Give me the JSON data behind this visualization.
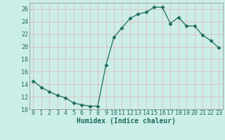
{
  "x": [
    0,
    1,
    2,
    3,
    4,
    5,
    6,
    7,
    8,
    9,
    10,
    11,
    12,
    13,
    14,
    15,
    16,
    17,
    18,
    19,
    20,
    21,
    22,
    23
  ],
  "y": [
    14.5,
    13.5,
    12.8,
    12.2,
    11.8,
    11.0,
    10.7,
    10.5,
    10.5,
    17.0,
    21.5,
    23.0,
    24.5,
    25.2,
    25.5,
    26.3,
    26.3,
    23.7,
    24.7,
    23.3,
    23.3,
    21.8,
    21.0,
    19.8
  ],
  "line_color": "#1e6b5e",
  "marker": "D",
  "markersize": 2.5,
  "bg_color": "#cceee8",
  "grid_color": "#ddbcbc",
  "xlabel": "Humidex (Indice chaleur)",
  "xlim": [
    -0.5,
    23.5
  ],
  "ylim": [
    10,
    27
  ],
  "yticks": [
    10,
    12,
    14,
    16,
    18,
    20,
    22,
    24,
    26
  ],
  "xticks": [
    0,
    1,
    2,
    3,
    4,
    5,
    6,
    7,
    8,
    9,
    10,
    11,
    12,
    13,
    14,
    15,
    16,
    17,
    18,
    19,
    20,
    21,
    22,
    23
  ],
  "tick_color": "#1e6b5e",
  "label_color": "#1e6b5e",
  "axis_color": "#888888",
  "font_size": 6,
  "xlabel_fontsize": 7
}
